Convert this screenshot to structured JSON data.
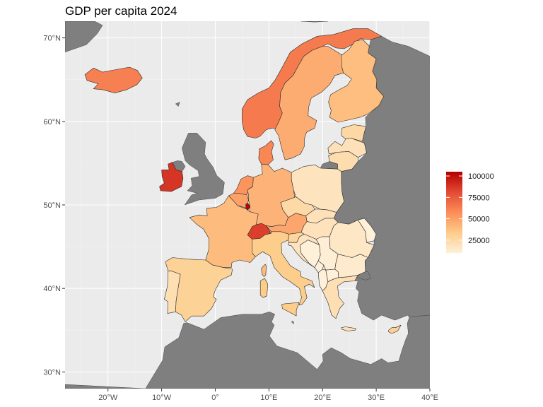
{
  "title": "GDP per capita 2024",
  "colors": {
    "panel_background": "#ebebeb",
    "grid": "#ffffff",
    "no_data_land": "#7f7f7f",
    "scale_low": "#fef0d9",
    "scale_high": "#b30000"
  },
  "chart_data": {
    "type": "choropleth",
    "projection": "equirectangular",
    "xlim": [
      -28,
      40
    ],
    "ylim": [
      28,
      72
    ],
    "x_ticks": [
      {
        "value": -20,
        "label": "20°W"
      },
      {
        "value": -10,
        "label": "10°W"
      },
      {
        "value": 0,
        "label": "0°"
      },
      {
        "value": 10,
        "label": "10°E"
      },
      {
        "value": 20,
        "label": "20°E"
      },
      {
        "value": 30,
        "label": "30°E"
      },
      {
        "value": 40,
        "label": "40°E"
      }
    ],
    "y_ticks": [
      {
        "value": 30,
        "label": "30°N"
      },
      {
        "value": 40,
        "label": "40°N"
      },
      {
        "value": 50,
        "label": "50°N"
      },
      {
        "value": 60,
        "label": "60°N"
      },
      {
        "value": 70,
        "label": "70°N"
      }
    ],
    "legend": {
      "position": "right",
      "limits": [
        10000,
        105000
      ],
      "breaks": [
        {
          "value": 25000,
          "label": "25000"
        },
        {
          "value": 50000,
          "label": "50000"
        },
        {
          "value": 75000,
          "label": "75000"
        },
        {
          "value": 100000,
          "label": "100000"
        }
      ]
    },
    "grid": true,
    "values": {
      "Iceland": 62000,
      "Ireland": 88000,
      "Norway": 64000,
      "Sweden": 46000,
      "Finland": 39000,
      "Denmark": 60000,
      "Netherlands": 55000,
      "Belgium": 50000,
      "Luxembourg": 103000,
      "Germany": 43000,
      "France": 40000,
      "Switzerland": 85000,
      "Austria": 48000,
      "Spain": 30000,
      "Portugal": 21000,
      "Italy": 33000,
      "Poland": 18000,
      "Czechia": 25000,
      "Slovakia": 20000,
      "Hungary": 19000,
      "Slovenia": 28000,
      "Croatia": 18000,
      "Romania": 16000,
      "Bulgaria": 14000,
      "Greece": 21000,
      "Estonia": 26000,
      "Latvia": 20000,
      "Lithuania": 23000,
      "Cyprus": 31000,
      "Malta": 35000,
      "Bosnia": 8000,
      "Serbia": 11000,
      "Montenegro": 10000,
      "Albania": 8000,
      "North Macedonia": 8000,
      "Moldova": 6000
    }
  }
}
